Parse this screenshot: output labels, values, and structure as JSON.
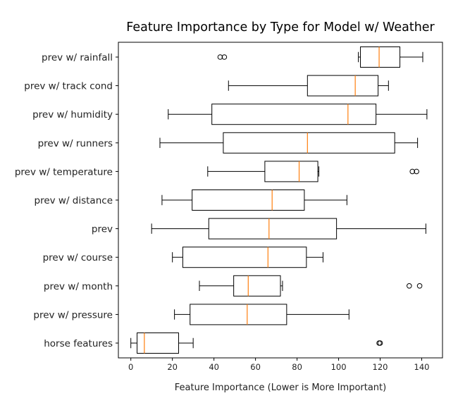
{
  "chart_data": {
    "type": "boxplot",
    "orientation": "horizontal",
    "title": "Feature Importance by Type for Model w/ Weather",
    "xlabel": "Feature Importance (Lower is More Important)",
    "ylabel": "",
    "xlim": [
      -6,
      150
    ],
    "xticks": [
      0,
      20,
      40,
      60,
      80,
      100,
      120,
      140
    ],
    "grid": false,
    "colors": {
      "box": "#000000",
      "median": "#ff7f0e",
      "flier": "#000000"
    },
    "boxes": [
      {
        "label": "prev w/ rainfall",
        "whislo": 109.5,
        "q1": 110.5,
        "med": 119.5,
        "q3": 129.5,
        "whishi": 140.5,
        "fliers": [
          43,
          45
        ]
      },
      {
        "label": "prev w/ track cond",
        "whislo": 47,
        "q1": 85,
        "med": 108,
        "q3": 119,
        "whishi": 124,
        "fliers": []
      },
      {
        "label": "prev w/ humidity",
        "whislo": 18,
        "q1": 39,
        "med": 104.5,
        "q3": 118,
        "whishi": 142.5,
        "fliers": []
      },
      {
        "label": "prev w/ runners",
        "whislo": 14,
        "q1": 44.5,
        "med": 85,
        "q3": 127,
        "whishi": 138,
        "fliers": []
      },
      {
        "label": "prev w/ temperature",
        "whislo": 37,
        "q1": 64.5,
        "med": 81,
        "q3": 90,
        "whishi": 90.5,
        "fliers": [
          135.5,
          137.5
        ]
      },
      {
        "label": "prev w/ distance",
        "whislo": 15,
        "q1": 29.5,
        "med": 68,
        "q3": 83.5,
        "whishi": 104,
        "fliers": []
      },
      {
        "label": "prev",
        "whislo": 10,
        "q1": 37.5,
        "med": 66.5,
        "q3": 99,
        "whishi": 142,
        "fliers": []
      },
      {
        "label": "prev w/ course",
        "whislo": 20,
        "q1": 25,
        "med": 66,
        "q3": 84.5,
        "whishi": 92.5,
        "fliers": []
      },
      {
        "label": "prev w/ month",
        "whislo": 33,
        "q1": 49.5,
        "med": 56.5,
        "q3": 72,
        "whishi": 73,
        "fliers": [
          134,
          139
        ]
      },
      {
        "label": "prev w/ pressure",
        "whislo": 21,
        "q1": 28.5,
        "med": 56,
        "q3": 75,
        "whishi": 105,
        "fliers": []
      },
      {
        "label": "horse features",
        "whislo": 0,
        "q1": 3,
        "med": 6.5,
        "q3": 23,
        "whishi": 30,
        "fliers": [
          119.5,
          120
        ]
      }
    ]
  }
}
